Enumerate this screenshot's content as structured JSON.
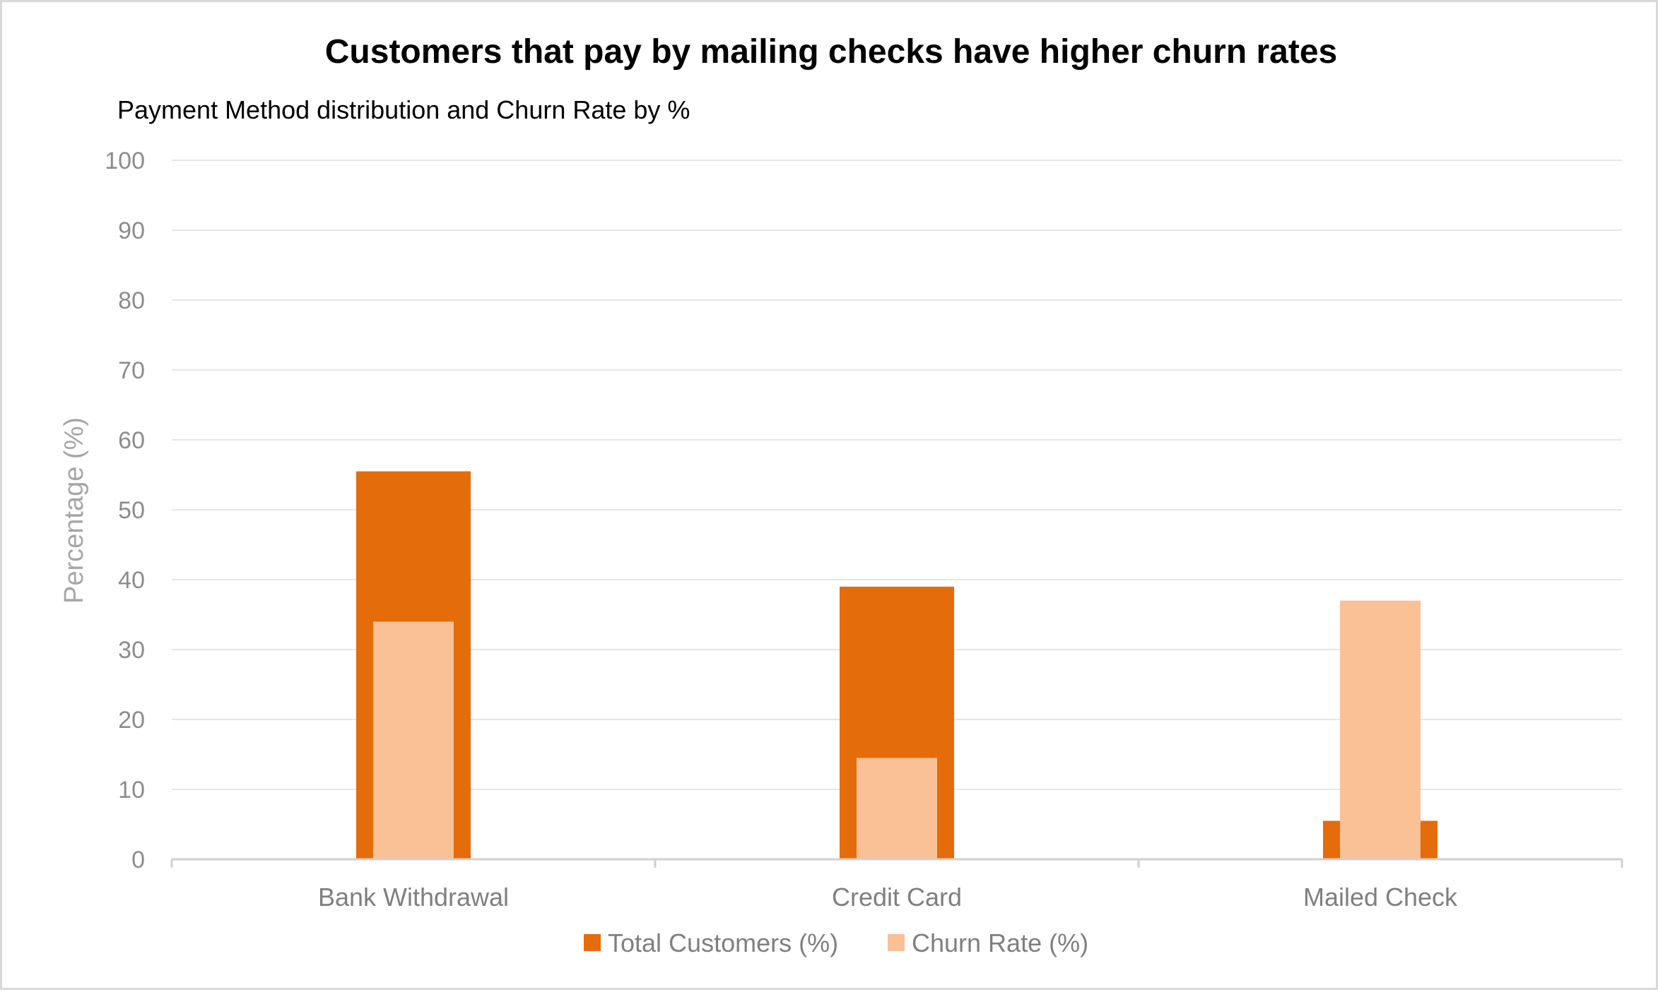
{
  "chart_data": {
    "type": "bar",
    "title": "Customers that pay by mailing checks have higher churn rates",
    "subtitle": "Payment Method distribution and Churn Rate by %",
    "ylabel": "Percentage (%)",
    "xlabel": "",
    "ylim": [
      0,
      100
    ],
    "yticks": [
      "0",
      "10",
      "20",
      "30",
      "40",
      "50",
      "60",
      "70",
      "80",
      "90",
      "100"
    ],
    "categories": [
      "Bank Withdrawal",
      "Credit Card",
      "Mailed Check"
    ],
    "series": [
      {
        "name": "Total Customers (%)",
        "color": "#e46c0a",
        "values": [
          55.5,
          39,
          5.5
        ]
      },
      {
        "name": "Churn Rate (%)",
        "color": "#f9c195",
        "values": [
          34,
          14.5,
          37
        ]
      }
    ],
    "grid": true,
    "legend": "bottom"
  }
}
